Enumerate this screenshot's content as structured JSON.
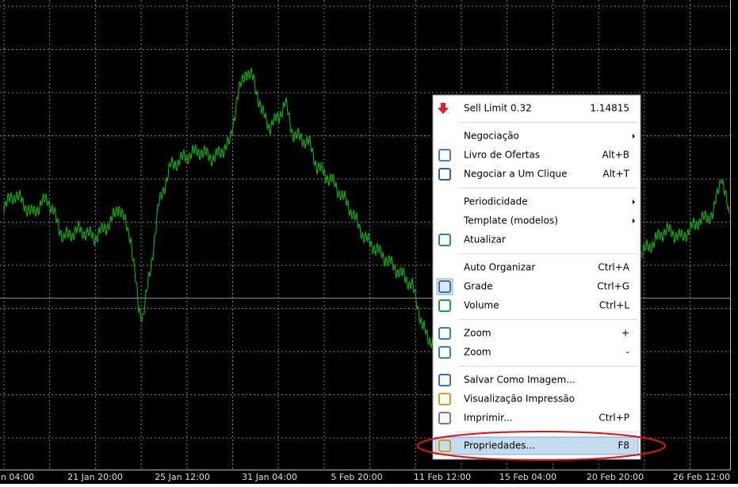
{
  "x_axis": {
    "labels": [
      "n 04:00",
      "21 Jan 20:00",
      "25 Jan 12:00",
      "31 Jan 04:00",
      "5 Feb 20:00",
      "11 Feb 12:00",
      "15 Feb 04:00",
      "20 Feb 20:00",
      "26 Feb 12:00"
    ]
  },
  "menu": {
    "groups": [
      [
        {
          "label": "Sell Limit 0.32",
          "shortcut": "1.14815",
          "icon": "sell"
        }
      ],
      [
        {
          "label": "Negociação",
          "submenu": true
        },
        {
          "label": "Livro de Ofertas",
          "shortcut": "Alt+B",
          "icon": "book"
        },
        {
          "label": "Negociar a Um Clique",
          "shortcut": "Alt+T",
          "icon": "oneclick"
        }
      ],
      [
        {
          "label": "Periodicidade",
          "submenu": true
        },
        {
          "label": "Template (modelos)",
          "submenu": true
        },
        {
          "label": "Atualizar",
          "icon": "refresh"
        }
      ],
      [
        {
          "label": "Auto Organizar",
          "shortcut": "Ctrl+A"
        },
        {
          "label": "Grade",
          "shortcut": "Ctrl+G",
          "icon": "grid",
          "checked": true
        },
        {
          "label": "Volume",
          "shortcut": "Ctrl+L",
          "icon": "volume"
        }
      ],
      [
        {
          "label": "Zoom",
          "shortcut": "+",
          "icon": "zoomin"
        },
        {
          "label": "Zoom",
          "shortcut": "-",
          "icon": "zoomout"
        }
      ],
      [
        {
          "label": "Salvar Como Imagem...",
          "icon": "save"
        },
        {
          "label": "Visualização Impressão",
          "icon": "preview"
        },
        {
          "label": "Imprimir...",
          "shortcut": "Ctrl+P",
          "icon": "print"
        }
      ],
      [
        {
          "label": "Propriedades...",
          "shortcut": "F8",
          "icon": "props",
          "highlighted": true
        }
      ]
    ]
  }
}
